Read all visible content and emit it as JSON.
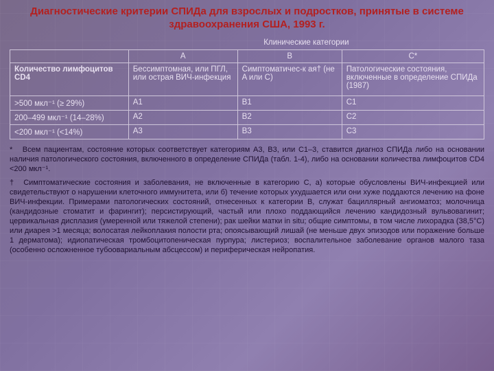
{
  "title": "Диагностические критерии СПИДа для взрослых и подростков, принятые в системе здравоохранения США, 1993 г.",
  "table": {
    "span_header": "Клинические категории",
    "col_rowhead": "",
    "col_a": "A",
    "col_b": "B",
    "col_c": "C*",
    "rowhead_label": "Количество лимфоцитов CD4",
    "desc_a": "Бессимптомная, или ПГЛ, или острая ВИЧ-инфекция",
    "desc_b": "Симптоматичес-к ая† (не A или C)",
    "desc_c": "Патологические состояния, включенные в определение СПИДа (1987)",
    "r1_label": ">500 мкл⁻¹ (≥ 29%)",
    "r1_a": "A1",
    "r1_b": "B1",
    "r1_c": "C1",
    "r2_label": "200–499 мкл⁻¹ (14–28%)",
    "r2_a": "A2",
    "r2_b": "B2",
    "r2_c": "C2",
    "r3_label": "<200 мкл⁻¹ (<14%)",
    "r3_a": "A3",
    "r3_b": "B3",
    "r3_c": "C3"
  },
  "note1": "Всем пациентам, состояние которых соответствует категориям A3, B3, или C1–3, ставится диагноз СПИДа либо на основании наличия патологического состояния, включенного в определение СПИДа (табл. 1-4), либо на основании количества лимфоцитов CD4 <200 мкл⁻¹.",
  "note1_prefix": "*",
  "note2_prefix": "†",
  "note2": "Симптоматические состояния и заболевания, не включенные в категорию C, а) которые обусловлены ВИЧ-инфекцией или свидетельствуют о нарушении клеточного иммунитета, или б) течение которых ухудшается или они хуже поддаются лечению на фоне ВИЧ-инфекции. Примерами патологических состояний, отнесенных к категории B, служат бациллярный ангиоматоз; молочница (кандидозные стоматит и фарингит); персистирующий, частый или плохо поддающийся лечению кандидозный вульвовагинит; цервикальная дисплазия (умеренной или тяжелой степени); рак шейки матки in situ; общие симптомы, в том числе лихорадка (38,5°C) или диарея >1 месяца; волосатая лейкоплакия полости рта; опоясывающий лишай (не меньше двух эпизодов или поражение больше 1 дерматома); идиопатическая тромбоцитопеническая пурпура; листериоз; воспалительное заболевание органов малого таза (особенно осложненное тубоовариальным абсцессом) и периферическая нейропатия.",
  "colors": {
    "title": "#b32020",
    "table_text": "#e8e0f0",
    "border": "#cfc6da",
    "notes": "#1e1030"
  }
}
